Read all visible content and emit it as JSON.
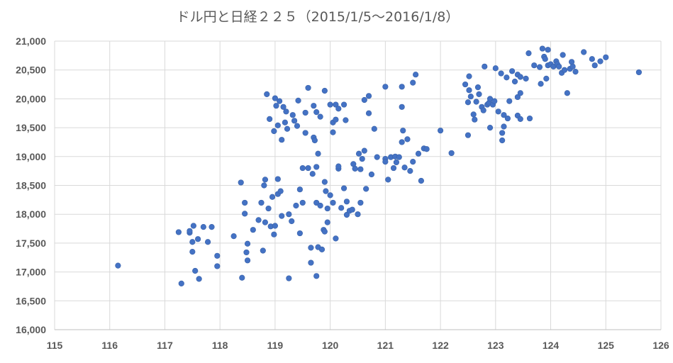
{
  "chart_data": {
    "type": "scatter",
    "title": "ドル円と日経２２５（2015/1/5～2016/1/8）",
    "xlim": [
      115,
      126
    ],
    "ylim": [
      16000,
      21000
    ],
    "x_ticks": [
      115,
      116,
      117,
      118,
      119,
      120,
      121,
      122,
      123,
      124,
      125,
      126
    ],
    "y_ticks": [
      16000,
      16500,
      17000,
      17500,
      18000,
      18500,
      19000,
      19500,
      20000,
      20500,
      21000
    ],
    "x_tick_labels": [
      "115",
      "116",
      "117",
      "118",
      "119",
      "120",
      "121",
      "122",
      "123",
      "124",
      "125",
      "126"
    ],
    "y_tick_labels": [
      "16,000",
      "16,500",
      "17,000",
      "17,500",
      "18,000",
      "18,500",
      "19,000",
      "19,500",
      "20,000",
      "20,500",
      "21,000"
    ],
    "grid": true,
    "color": "#4472c4",
    "points": [
      [
        116.15,
        17110
      ],
      [
        117.25,
        17690
      ],
      [
        117.3,
        16800
      ],
      [
        117.45,
        17680
      ],
      [
        117.45,
        17710
      ],
      [
        117.5,
        17520
      ],
      [
        117.5,
        17350
      ],
      [
        117.52,
        17800
      ],
      [
        117.55,
        17020
      ],
      [
        117.6,
        17570
      ],
      [
        117.62,
        16880
      ],
      [
        117.7,
        17780
      ],
      [
        117.78,
        17520
      ],
      [
        117.85,
        17780
      ],
      [
        117.95,
        17280
      ],
      [
        117.95,
        17100
      ],
      [
        118.25,
        17620
      ],
      [
        118.38,
        18550
      ],
      [
        118.4,
        16900
      ],
      [
        118.45,
        18200
      ],
      [
        118.45,
        18010
      ],
      [
        118.48,
        17340
      ],
      [
        118.5,
        17490
      ],
      [
        118.5,
        17200
      ],
      [
        118.6,
        17730
      ],
      [
        118.7,
        17900
      ],
      [
        118.75,
        18200
      ],
      [
        118.78,
        17370
      ],
      [
        118.8,
        18500
      ],
      [
        118.82,
        17860
      ],
      [
        118.82,
        18600
      ],
      [
        118.85,
        20080
      ],
      [
        118.88,
        18100
      ],
      [
        118.9,
        19650
      ],
      [
        118.92,
        17790
      ],
      [
        118.95,
        18300
      ],
      [
        118.98,
        17650
      ],
      [
        118.98,
        19440
      ],
      [
        119.0,
        20010
      ],
      [
        119.0,
        17800
      ],
      [
        119.02,
        19880
      ],
      [
        119.05,
        18350
      ],
      [
        119.05,
        19540
      ],
      [
        119.05,
        18610
      ],
      [
        119.08,
        19960
      ],
      [
        119.1,
        18400
      ],
      [
        119.12,
        17970
      ],
      [
        119.12,
        19290
      ],
      [
        119.15,
        19860
      ],
      [
        119.18,
        19590
      ],
      [
        119.2,
        19780
      ],
      [
        119.22,
        19480
      ],
      [
        119.25,
        18000
      ],
      [
        119.25,
        16890
      ],
      [
        119.3,
        17880
      ],
      [
        119.32,
        19720
      ],
      [
        119.35,
        19620
      ],
      [
        119.38,
        18150
      ],
      [
        119.4,
        19530
      ],
      [
        119.42,
        19970
      ],
      [
        119.45,
        18430
      ],
      [
        119.45,
        17670
      ],
      [
        119.5,
        18800
      ],
      [
        119.5,
        18200
      ],
      [
        119.55,
        19760
      ],
      [
        119.55,
        19410
      ],
      [
        119.6,
        18800
      ],
      [
        119.6,
        20190
      ],
      [
        119.65,
        17160
      ],
      [
        119.65,
        17420
      ],
      [
        119.68,
        18700
      ],
      [
        119.7,
        19880
      ],
      [
        119.7,
        19330
      ],
      [
        119.72,
        19280
      ],
      [
        119.75,
        19770
      ],
      [
        119.75,
        18820
      ],
      [
        119.75,
        18200
      ],
      [
        119.75,
        16930
      ],
      [
        119.78,
        19050
      ],
      [
        119.78,
        17430
      ],
      [
        119.82,
        18150
      ],
      [
        119.82,
        19690
      ],
      [
        119.85,
        17390
      ],
      [
        119.88,
        17730
      ],
      [
        119.9,
        20140
      ],
      [
        119.9,
        17700
      ],
      [
        119.9,
        18560
      ],
      [
        119.92,
        18400
      ],
      [
        119.95,
        18100
      ],
      [
        119.95,
        17860
      ],
      [
        120.0,
        18330
      ],
      [
        120.0,
        19900
      ],
      [
        120.05,
        19590
      ],
      [
        120.05,
        18200
      ],
      [
        120.05,
        19420
      ],
      [
        120.1,
        19640
      ],
      [
        120.1,
        19900
      ],
      [
        120.1,
        17580
      ],
      [
        120.15,
        18790
      ],
      [
        120.15,
        18830
      ],
      [
        120.15,
        19830
      ],
      [
        120.2,
        18110
      ],
      [
        120.25,
        19900
      ],
      [
        120.25,
        18450
      ],
      [
        120.28,
        19630
      ],
      [
        120.3,
        17990
      ],
      [
        120.3,
        18220
      ],
      [
        120.35,
        18060
      ],
      [
        120.4,
        18080
      ],
      [
        120.42,
        18870
      ],
      [
        120.45,
        18790
      ],
      [
        120.5,
        18000
      ],
      [
        120.52,
        19050
      ],
      [
        120.55,
        18780
      ],
      [
        120.55,
        18200
      ],
      [
        120.58,
        18960
      ],
      [
        120.62,
        19980
      ],
      [
        120.62,
        19100
      ],
      [
        120.65,
        18440
      ],
      [
        120.7,
        20050
      ],
      [
        120.7,
        19750
      ],
      [
        120.75,
        18690
      ],
      [
        120.8,
        19480
      ],
      [
        120.85,
        18990
      ],
      [
        121.0,
        20210
      ],
      [
        121.0,
        18960
      ],
      [
        121.0,
        18910
      ],
      [
        121.05,
        18600
      ],
      [
        121.1,
        18990
      ],
      [
        121.15,
        18800
      ],
      [
        121.18,
        19000
      ],
      [
        121.2,
        18900
      ],
      [
        121.25,
        18990
      ],
      [
        121.3,
        19250
      ],
      [
        121.3,
        20210
      ],
      [
        121.3,
        19860
      ],
      [
        121.32,
        19450
      ],
      [
        121.35,
        18810
      ],
      [
        121.4,
        19300
      ],
      [
        121.45,
        18750
      ],
      [
        121.5,
        20280
      ],
      [
        121.5,
        18910
      ],
      [
        121.55,
        20420
      ],
      [
        121.6,
        19050
      ],
      [
        121.65,
        18580
      ],
      [
        121.7,
        19140
      ],
      [
        121.75,
        19130
      ],
      [
        122.0,
        19450
      ],
      [
        122.2,
        19060
      ],
      [
        122.45,
        20250
      ],
      [
        122.5,
        19940
      ],
      [
        122.5,
        19370
      ],
      [
        122.52,
        20390
      ],
      [
        122.52,
        20150
      ],
      [
        122.55,
        20040
      ],
      [
        122.6,
        19730
      ],
      [
        122.62,
        19640
      ],
      [
        122.65,
        19950
      ],
      [
        122.68,
        20200
      ],
      [
        122.7,
        20080
      ],
      [
        122.75,
        19860
      ],
      [
        122.78,
        19800
      ],
      [
        122.8,
        20560
      ],
      [
        122.85,
        19900
      ],
      [
        122.88,
        19930
      ],
      [
        122.9,
        20000
      ],
      [
        122.9,
        19500
      ],
      [
        122.95,
        19900
      ],
      [
        122.98,
        19960
      ],
      [
        123.0,
        20530
      ],
      [
        123.05,
        19780
      ],
      [
        123.1,
        20440
      ],
      [
        123.12,
        19410
      ],
      [
        123.12,
        19280
      ],
      [
        123.15,
        19720
      ],
      [
        123.15,
        19520
      ],
      [
        123.2,
        20370
      ],
      [
        123.22,
        19660
      ],
      [
        123.25,
        19960
      ],
      [
        123.3,
        20480
      ],
      [
        123.35,
        20300
      ],
      [
        123.4,
        20420
      ],
      [
        123.4,
        20030
      ],
      [
        123.4,
        19710
      ],
      [
        123.45,
        20380
      ],
      [
        123.45,
        20100
      ],
      [
        123.45,
        19650
      ],
      [
        123.55,
        20350
      ],
      [
        123.6,
        20790
      ],
      [
        123.62,
        19660
      ],
      [
        123.7,
        20580
      ],
      [
        123.8,
        20550
      ],
      [
        123.82,
        20260
      ],
      [
        123.85,
        20870
      ],
      [
        123.88,
        20730
      ],
      [
        123.9,
        20690
      ],
      [
        123.92,
        20350
      ],
      [
        123.95,
        20850
      ],
      [
        123.95,
        20580
      ],
      [
        124.0,
        20600
      ],
      [
        124.05,
        20560
      ],
      [
        124.1,
        20650
      ],
      [
        124.12,
        20600
      ],
      [
        124.15,
        20560
      ],
      [
        124.2,
        20450
      ],
      [
        124.22,
        20760
      ],
      [
        124.25,
        20500
      ],
      [
        124.3,
        20100
      ],
      [
        124.35,
        20520
      ],
      [
        124.38,
        20640
      ],
      [
        124.4,
        20560
      ],
      [
        124.45,
        20470
      ],
      [
        124.6,
        20810
      ],
      [
        124.75,
        20690
      ],
      [
        124.8,
        20580
      ],
      [
        124.9,
        20650
      ],
      [
        125.0,
        20720
      ],
      [
        125.6,
        20460
      ]
    ]
  }
}
